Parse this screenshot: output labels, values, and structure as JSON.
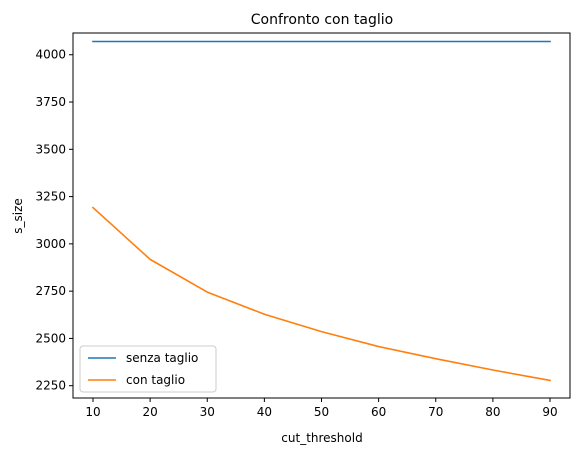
{
  "chart_data": {
    "type": "line",
    "title": "Confronto con taglio",
    "xlabel": "cut_threshold",
    "ylabel": "s_size",
    "xlim": [
      6.5,
      93.5
    ],
    "ylim": [
      2185,
      4115
    ],
    "xticks": [
      10,
      20,
      30,
      40,
      50,
      60,
      70,
      80,
      90
    ],
    "yticks": [
      2250,
      2500,
      2750,
      3000,
      3250,
      3500,
      3750,
      4000
    ],
    "x": [
      10,
      20,
      30,
      40,
      50,
      60,
      70,
      80,
      90
    ],
    "series": [
      {
        "name": "senza taglio",
        "color": "#1f77b4",
        "values": [
          4070,
          4070,
          4070,
          4070,
          4070,
          4070,
          4070,
          4070,
          4070
        ]
      },
      {
        "name": "con taglio",
        "color": "#ff7f0e",
        "values": [
          3192,
          2918,
          2745,
          2628,
          2536,
          2457,
          2393,
          2333,
          2278
        ]
      }
    ],
    "grid": false,
    "legend": "lower-left"
  }
}
